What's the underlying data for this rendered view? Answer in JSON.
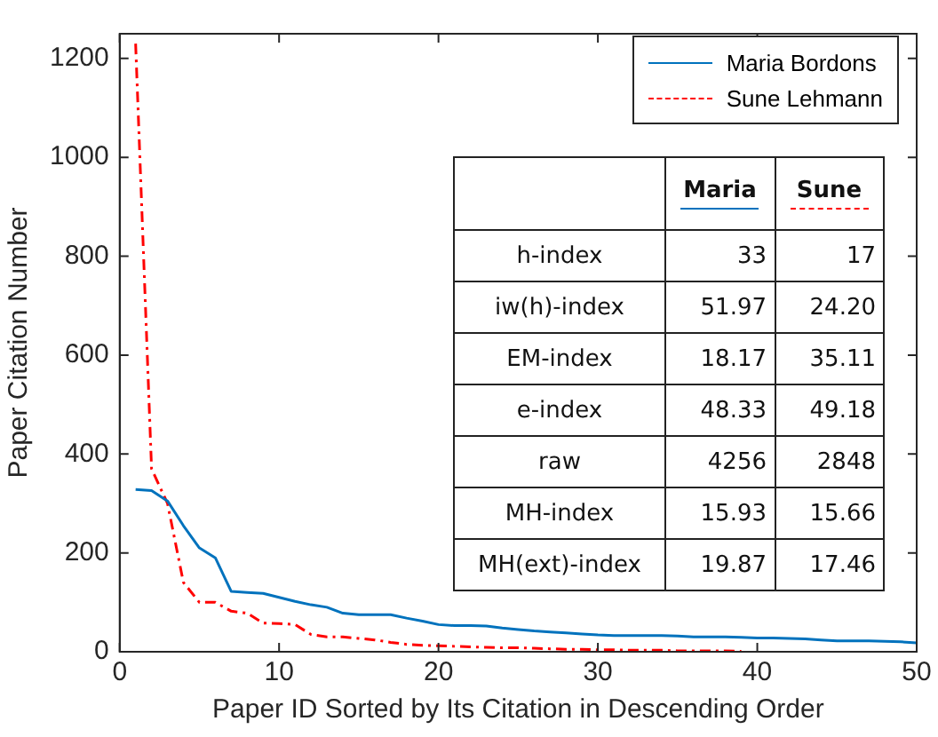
{
  "chart_data": {
    "type": "line",
    "xlabel": "Paper ID Sorted by Its Citation in Descending Order",
    "ylabel": "Paper Citation Number",
    "xlim": [
      0,
      50
    ],
    "xticks": [
      0,
      10,
      20,
      30,
      40,
      50
    ],
    "ylim": [
      0,
      1250
    ],
    "yticks": [
      0,
      200,
      400,
      600,
      800,
      1000,
      1200
    ],
    "legend": "top right",
    "grid": false,
    "marker": "none",
    "series": [
      {
        "name": "Maria Bordons",
        "color": "#0072bd",
        "line_style": "solid",
        "x": [
          1,
          2,
          3,
          4,
          5,
          6,
          7,
          8,
          9,
          10,
          11,
          12,
          13,
          14,
          15,
          16,
          17,
          18,
          19,
          20,
          21,
          22,
          23,
          24,
          25,
          26,
          27,
          28,
          29,
          30,
          31,
          32,
          33,
          34,
          35,
          36,
          37,
          38,
          39,
          40,
          41,
          42,
          43,
          44,
          45,
          46,
          47,
          48,
          49,
          50
        ],
        "values": [
          328,
          326,
          305,
          255,
          210,
          190,
          122,
          120,
          118,
          110,
          102,
          95,
          90,
          78,
          75,
          75,
          75,
          68,
          62,
          55,
          53,
          53,
          52,
          48,
          45,
          42,
          40,
          38,
          36,
          34,
          33,
          33,
          33,
          33,
          32,
          30,
          30,
          30,
          29,
          28,
          28,
          27,
          26,
          24,
          22,
          22,
          22,
          21,
          20,
          18
        ]
      },
      {
        "name": "Sune Lehmann",
        "color": "#ff0000",
        "line_style": "dashed",
        "x": [
          1,
          2,
          3,
          4,
          5,
          6,
          7,
          8,
          9,
          10,
          11,
          12,
          13,
          14,
          15,
          16,
          17,
          18,
          19,
          20,
          21,
          22,
          23,
          24,
          25,
          26,
          27,
          28,
          29,
          30,
          31,
          32,
          33,
          34,
          35,
          36,
          37,
          38,
          39
        ],
        "values": [
          1230,
          370,
          300,
          140,
          100,
          100,
          82,
          78,
          58,
          57,
          55,
          35,
          30,
          30,
          27,
          24,
          19,
          15,
          13,
          12,
          11,
          10,
          9,
          8,
          8,
          7,
          6,
          5,
          5,
          4,
          4,
          3,
          3,
          3,
          2,
          2,
          2,
          2,
          1
        ]
      }
    ],
    "annotations": [
      "Maria",
      "Sune",
      "h-index",
      "33",
      "17",
      "iw(h)-index",
      "51.97",
      "24.20",
      "EM-index",
      "18.17",
      "35.11",
      "e-index",
      "48.33",
      "49.18",
      "raw",
      "4256",
      "2848",
      "MH-index",
      "15.93",
      "15.66",
      "MH(ext)-index",
      "19.87",
      "17.46"
    ]
  }
}
